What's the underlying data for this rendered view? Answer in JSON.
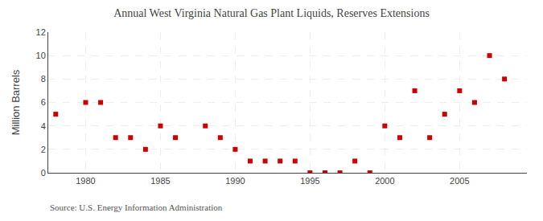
{
  "chart_data": {
    "type": "scatter",
    "title": "Annual West Virginia Natural Gas Plant Liquids, Reserves Extensions",
    "ylabel": "Million Barrels",
    "annotations": [
      "Source: U.S. Energy Information Administration"
    ],
    "x": [
      1978,
      1980,
      1981,
      1982,
      1983,
      1984,
      1985,
      1986,
      1988,
      1989,
      1990,
      1991,
      1992,
      1993,
      1994,
      1995,
      1996,
      1997,
      1998,
      1999,
      2000,
      2001,
      2002,
      2003,
      2004,
      2005,
      2006,
      2007,
      2008
    ],
    "values": [
      5,
      6,
      6,
      3,
      3,
      2,
      4,
      3,
      4,
      3,
      2,
      1,
      1,
      1,
      1,
      0,
      0,
      0,
      1,
      0,
      4,
      3,
      7,
      3,
      5,
      7,
      6,
      10,
      8
    ],
    "color": "#cc0000",
    "marker": "square",
    "xlim": [
      1977.5,
      2009.5
    ],
    "ylim": [
      0,
      12
    ],
    "xticks": [
      1980,
      1985,
      1990,
      1995,
      2000,
      2005
    ],
    "yticks": [
      0,
      2,
      4,
      6,
      8,
      10,
      12
    ],
    "grid": true
  }
}
